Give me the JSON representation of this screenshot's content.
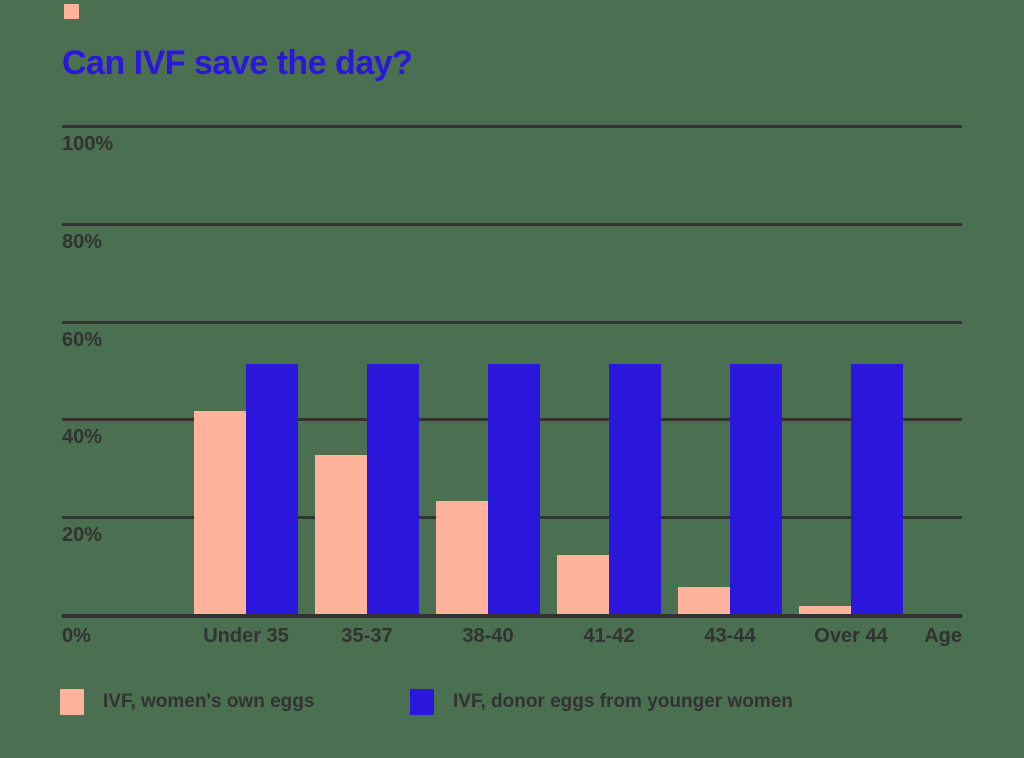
{
  "title": "Can IVF save the day?",
  "colors": {
    "background": "#4A7051",
    "title_blue": "#2B16DB",
    "peach": "#FFB29C",
    "blue": "#2B16DB",
    "ink": "#323232"
  },
  "corner_marker": {
    "icon": "peach-square",
    "color": "#FFB29C"
  },
  "chart_data": {
    "type": "bar",
    "title": "Can IVF save the day?",
    "categories": [
      "Under 35",
      "35-37",
      "38-40",
      "41-42",
      "43-44",
      "Over 44"
    ],
    "series": [
      {
        "name": "IVF, women's own eggs",
        "color": "#FFB29C",
        "values": [
          42,
          33,
          23.5,
          12.5,
          6,
          2
        ]
      },
      {
        "name": "IVF, donor eggs from younger women",
        "color": "#2B16DB",
        "values": [
          51.5,
          51.5,
          51.5,
          51.5,
          51.5,
          51.5
        ]
      }
    ],
    "x_axis_label": "Age",
    "ylabel": "",
    "ylim": [
      0,
      100
    ],
    "ytick_values": [
      0,
      20,
      40,
      60,
      80,
      100
    ],
    "ytick_labels": [
      "0%",
      "20%",
      "40%",
      "60%",
      "80%",
      "100%"
    ],
    "grid": true,
    "legend_position": "bottom"
  },
  "legend": {
    "items": [
      {
        "label": "IVF, women's own eggs",
        "swatch_color": "#FFB29C"
      },
      {
        "label": "IVF, donor eggs from younger women",
        "swatch_color": "#2B16DB"
      }
    ]
  }
}
